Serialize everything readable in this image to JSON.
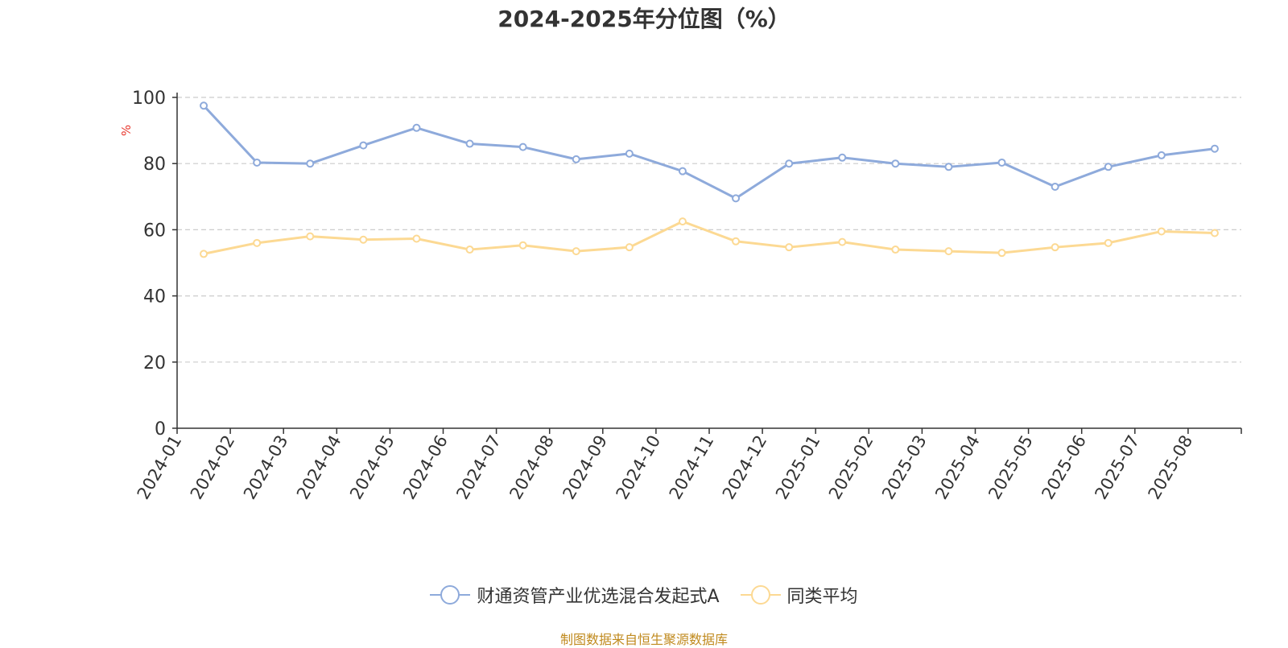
{
  "chart_data": {
    "type": "line",
    "title": "2024-2025年分位图（%）",
    "ylabel": "%",
    "xlabel": "",
    "ylim": [
      0,
      100
    ],
    "yticks": [
      0,
      20,
      40,
      60,
      80,
      100
    ],
    "grid": true,
    "legend_position": "bottom",
    "categories": [
      "2024-01",
      "2024-02",
      "2024-03",
      "2024-04",
      "2024-05",
      "2024-06",
      "2024-07",
      "2024-08",
      "2024-09",
      "2024-10",
      "2024-11",
      "2024-12",
      "2025-01",
      "2025-02",
      "2025-03",
      "2025-04",
      "2025-05",
      "2025-06",
      "2025-07",
      "2025-08"
    ],
    "series": [
      {
        "name": "财通资管产业优选混合发起式A",
        "color": "#8eaadb",
        "values": [
          97.5,
          80.3,
          80.0,
          85.5,
          90.8,
          86.0,
          85.0,
          81.3,
          83.0,
          77.7,
          69.5,
          80.0,
          81.8,
          80.0,
          79.0,
          80.3,
          73.0,
          79.0,
          82.5,
          84.5
        ]
      },
      {
        "name": "同类平均",
        "color": "#fcd993",
        "values": [
          52.7,
          56.0,
          58.0,
          57.0,
          57.3,
          54.0,
          55.3,
          53.5,
          54.7,
          62.5,
          56.5,
          54.7,
          56.3,
          54.0,
          53.5,
          53.0,
          54.7,
          56.0,
          59.5,
          59.0
        ]
      }
    ]
  },
  "source_note": "制图数据来自恒生聚源数据库",
  "colors": {
    "axis": "#333333",
    "grid": "#cccccc",
    "ylabel": "#e8382e",
    "source": "#c08a1e"
  }
}
